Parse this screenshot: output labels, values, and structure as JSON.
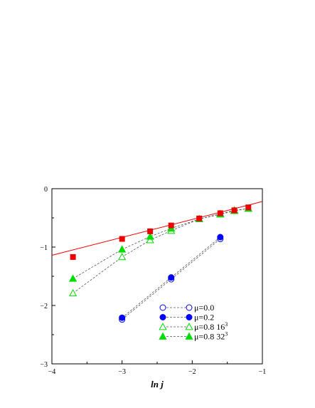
{
  "chart_data": {
    "type": "scatter",
    "xlabel": "ln j",
    "ylabel": "",
    "xlim": [
      -4,
      -1
    ],
    "ylim": [
      -3,
      0
    ],
    "xticks": [
      -4,
      -3,
      -2,
      -1
    ],
    "yticks": [
      -3,
      -2,
      -1,
      0
    ],
    "xtick_labels": [
      "−4",
      "−3",
      "−2",
      "−1"
    ],
    "ytick_labels": [
      "−3",
      "−2",
      "−1",
      "0"
    ],
    "grid": false,
    "legend_position": "bottom-right",
    "series": [
      {
        "name": "μ=0.0",
        "marker": "circle-open",
        "color": "#0000ff",
        "x": [
          -3.0,
          -2.3,
          -1.6
        ],
        "y": [
          -2.24,
          -1.55,
          -0.86
        ]
      },
      {
        "name": "μ=0.2",
        "marker": "circle-filled",
        "color": "#0000ff",
        "x": [
          -3.0,
          -2.3,
          -1.6
        ],
        "y": [
          -2.21,
          -1.52,
          -0.83
        ]
      },
      {
        "name": "μ=0.8 16",
        "superscript": "3",
        "marker": "triangle-open",
        "color": "#00dd00",
        "x": [
          -3.7,
          -3.0,
          -2.6,
          -2.3,
          -1.9,
          -1.6,
          -1.4,
          -1.2
        ],
        "y": [
          -1.79,
          -1.17,
          -0.88,
          -0.72,
          -0.52,
          -0.44,
          -0.38,
          -0.34
        ]
      },
      {
        "name": "μ=0.8 32",
        "superscript": "3",
        "marker": "triangle-filled",
        "color": "#00dd00",
        "x": [
          -3.7,
          -3.0,
          -2.6,
          -2.3,
          -1.9,
          -1.6,
          -1.4,
          -1.2
        ],
        "y": [
          -1.54,
          -1.04,
          -0.82,
          -0.68,
          -0.52,
          -0.43,
          -0.37,
          -0.34
        ]
      },
      {
        "name": "",
        "marker": "square-filled",
        "color": "#ee0000",
        "legend": false,
        "x": [
          -3.7,
          -3.0,
          -2.6,
          -2.3,
          -1.9,
          -1.6,
          -1.4,
          -1.2
        ],
        "y": [
          -1.17,
          -0.86,
          -0.73,
          -0.63,
          -0.51,
          -0.42,
          -0.37,
          -0.32
        ]
      }
    ],
    "fit_line": {
      "color": "#ee0000",
      "x": [
        -4,
        -1
      ],
      "y": [
        -1.14,
        -0.22
      ]
    }
  }
}
